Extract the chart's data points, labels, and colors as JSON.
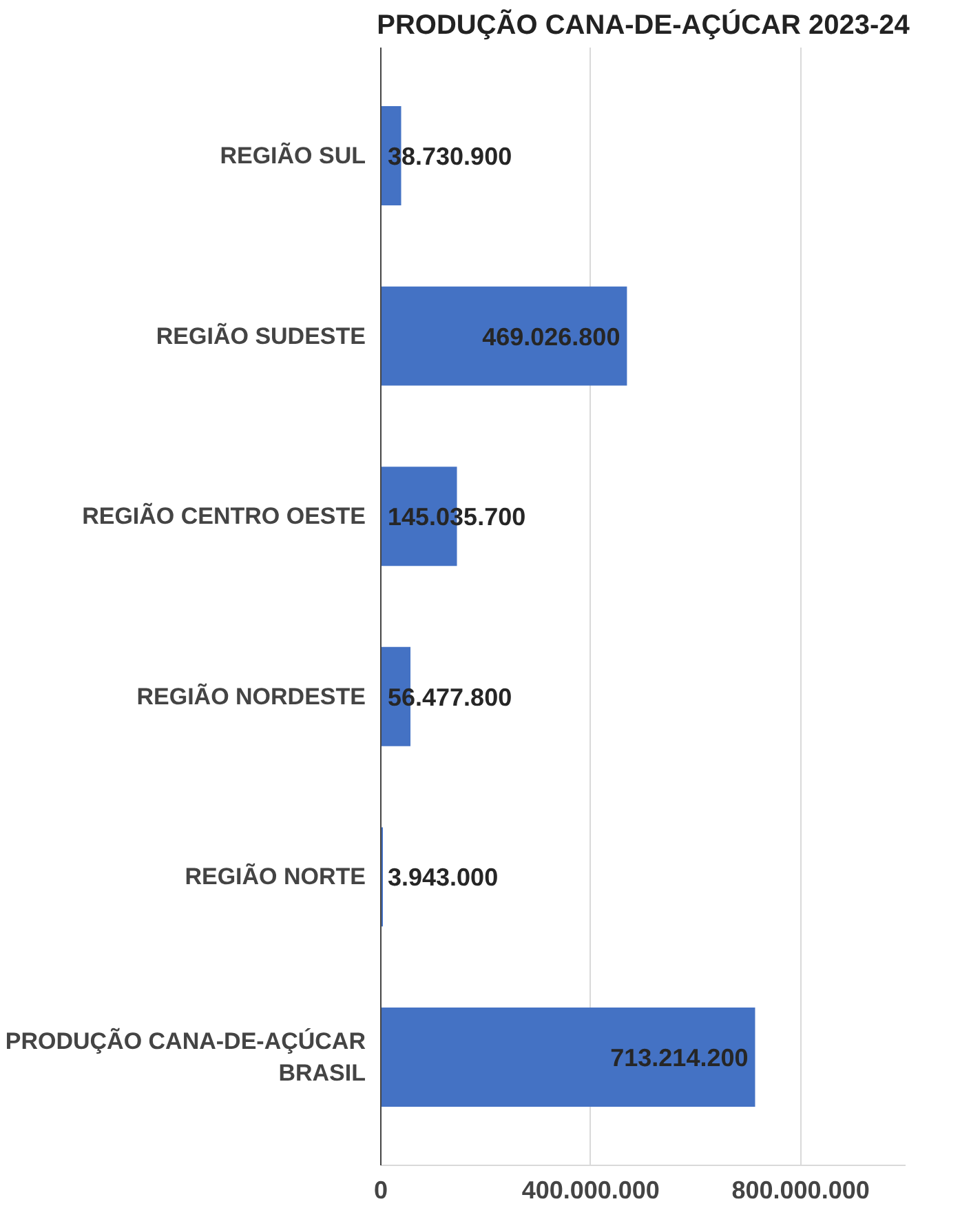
{
  "chart_data": {
    "type": "bar",
    "orientation": "horizontal",
    "title": "PRODUÇÃO CANA-DE-AÇÚCAR 2023-24",
    "categories": [
      "REGIÃO SUL",
      "REGIÃO SUDESTE",
      "REGIÃO CENTRO OESTE",
      "REGIÃO NORDESTE",
      "REGIÃO NORTE",
      "PRODUÇÃO CANA-DE-AÇÚCAR BRASIL"
    ],
    "values": [
      38730900,
      469026800,
      145035700,
      56477800,
      3943000,
      713214200
    ],
    "value_labels": [
      "38.730.900",
      "469.026.800",
      "145.035.700",
      "56.477.800",
      "3.943.000",
      "713.214.200"
    ],
    "color": "#4472c4",
    "xlim": [
      0,
      1000000000
    ],
    "xticks": [
      {
        "value": 0,
        "label": "0"
      },
      {
        "value": 400000000,
        "label": "400.000.000"
      },
      {
        "value": 800000000,
        "label": "800.000.000"
      }
    ],
    "grid": "x"
  }
}
